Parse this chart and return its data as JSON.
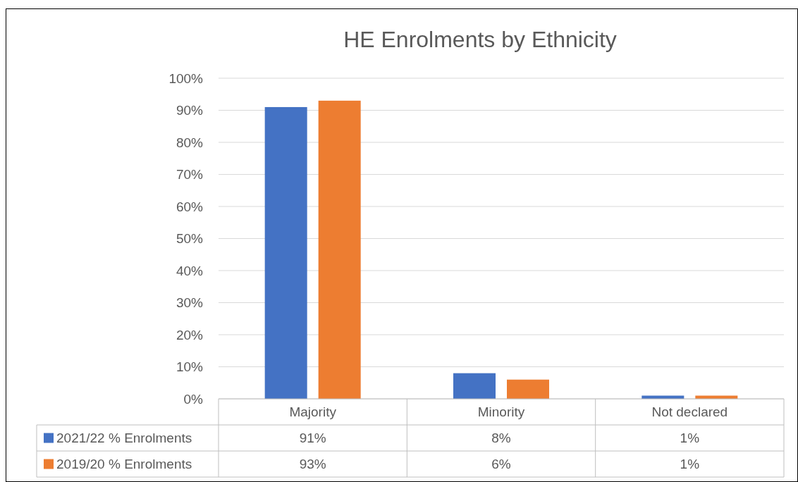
{
  "chart_data": {
    "type": "bar",
    "title": "HE Enrolments by Ethnicity",
    "categories": [
      "Majority",
      "Minority",
      "Not declared"
    ],
    "series": [
      {
        "name": "2021/22 % Enrolments",
        "color": "#4472c4",
        "values": [
          91,
          8,
          1
        ],
        "value_labels": [
          "91%",
          "8%",
          "1%"
        ]
      },
      {
        "name": "2019/20 % Enrolments",
        "color": "#ed7d31",
        "values": [
          93,
          6,
          1
        ],
        "value_labels": [
          "93%",
          "6%",
          "1%"
        ]
      }
    ],
    "ylim": [
      0,
      100
    ],
    "yticks": [
      {
        "value": 0,
        "label": "0%"
      },
      {
        "value": 10,
        "label": "10%"
      },
      {
        "value": 20,
        "label": "20%"
      },
      {
        "value": 30,
        "label": "30%"
      },
      {
        "value": 40,
        "label": "40%"
      },
      {
        "value": 50,
        "label": "50%"
      },
      {
        "value": 60,
        "label": "60%"
      },
      {
        "value": 70,
        "label": "70%"
      },
      {
        "value": 80,
        "label": "80%"
      },
      {
        "value": 90,
        "label": "90%"
      },
      {
        "value": 100,
        "label": "100%"
      }
    ],
    "grid": "y",
    "legend": "bottom"
  }
}
